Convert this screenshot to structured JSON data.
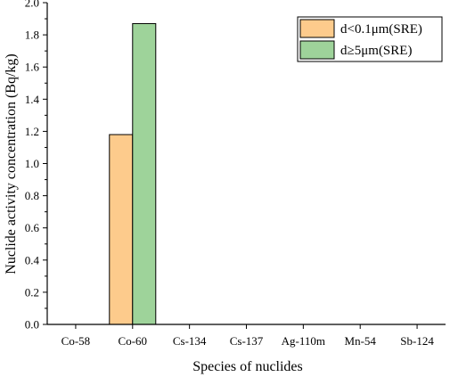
{
  "chart_data": {
    "type": "bar",
    "xlabel": "Species of nuclides",
    "ylabel": "Nuclide activity concentration (Bq/kg)",
    "categories": [
      "Co-58",
      "Co-60",
      "Cs-134",
      "Cs-137",
      "Ag-110m",
      "Mn-54",
      "Sb-124"
    ],
    "ylim": [
      0,
      2.0
    ],
    "yticks": [
      "0.0",
      "0.2",
      "0.4",
      "0.6",
      "0.8",
      "1.0",
      "1.2",
      "1.4",
      "1.6",
      "1.8",
      "2.0"
    ],
    "grid": false,
    "legend_position": "top-right",
    "series": [
      {
        "name": "d<0.1μm(SRE)",
        "color": "#FDCB8C",
        "values": [
          0,
          1.18,
          0,
          0,
          0,
          0,
          0
        ]
      },
      {
        "name": "d≥5μm(SRE)",
        "color": "#9ED39A",
        "values": [
          0,
          1.87,
          0,
          0,
          0,
          0,
          0
        ]
      }
    ]
  }
}
